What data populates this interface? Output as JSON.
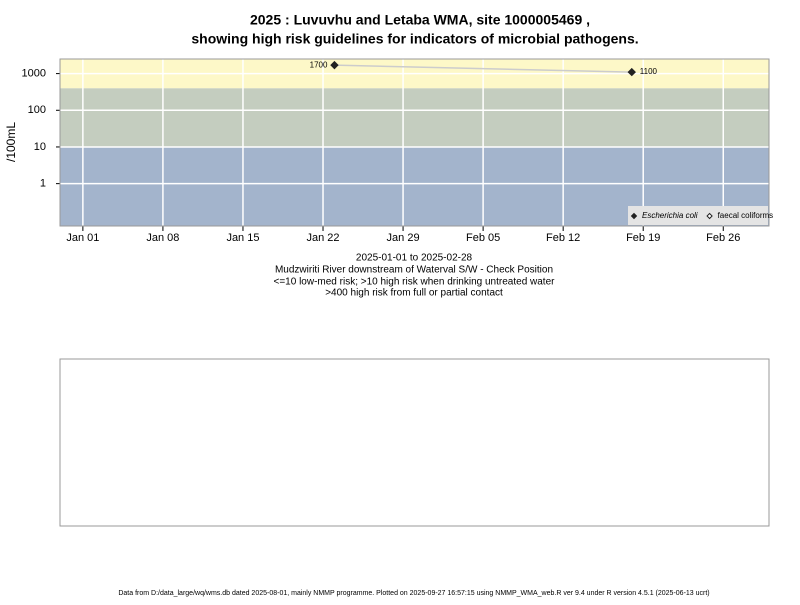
{
  "chart_data": {
    "type": "line",
    "title": [
      "2025 : Luvuvhu and Letaba WMA, site 1000005469 ,",
      "showing high risk guidelines for indicators of microbial pathogens."
    ],
    "y_label": "/100mL",
    "notes": [
      "2025-01-01 to 2025-02-28",
      "Mudzwiriti River downstream of Waterval S/W - Check Position",
      "<=10 low-med risk; >10 high risk when drinking untreated water",
      ">400 high risk from full or partial contact"
    ],
    "footer": "Data from D:/data_large/wq/wms.db dated 2025-08-01, mainly NMMP programme. Plotted on 2025-09-27 16:57:15 using NMMP_WMA_web.R ver 9.4 under R version 4.5.1 (2025-06-13 ucrt)",
    "log_y": true,
    "xlim": [
      "2024-12-30",
      "2025-03-02"
    ],
    "xticks": [
      {
        "value": "2025-01-01",
        "label": "Jan 01"
      },
      {
        "value": "2025-01-08",
        "label": "Jan 08"
      },
      {
        "value": "2025-01-15",
        "label": "Jan 15"
      },
      {
        "value": "2025-01-22",
        "label": "Jan 22"
      },
      {
        "value": "2025-01-29",
        "label": "Jan 29"
      },
      {
        "value": "2025-02-05",
        "label": "Feb 05"
      },
      {
        "value": "2025-02-12",
        "label": "Feb 12"
      },
      {
        "value": "2025-02-19",
        "label": "Feb 19"
      },
      {
        "value": "2025-02-26",
        "label": "Feb 26"
      }
    ],
    "ylim": [
      0.07,
      2500
    ],
    "yticks": [
      1,
      10,
      100,
      1000
    ],
    "grid": true,
    "bands": [
      {
        "upper": 10,
        "color": "#a3b4cc"
      },
      {
        "upper": 400,
        "color": "#c4cdbf"
      },
      {
        "color": "#fdf8c8"
      }
    ],
    "legend": "bottom-right",
    "series": [
      {
        "name": "Escherichia coli",
        "color": "#222222",
        "line_color": "#cccccc",
        "filled": true,
        "x": [
          "2025-01-23",
          "2025-02-18"
        ],
        "values": [
          1700,
          1100
        ]
      },
      {
        "name": "faecal coliforms",
        "color": "#222222",
        "filled": false,
        "x": [],
        "values": []
      }
    ]
  }
}
